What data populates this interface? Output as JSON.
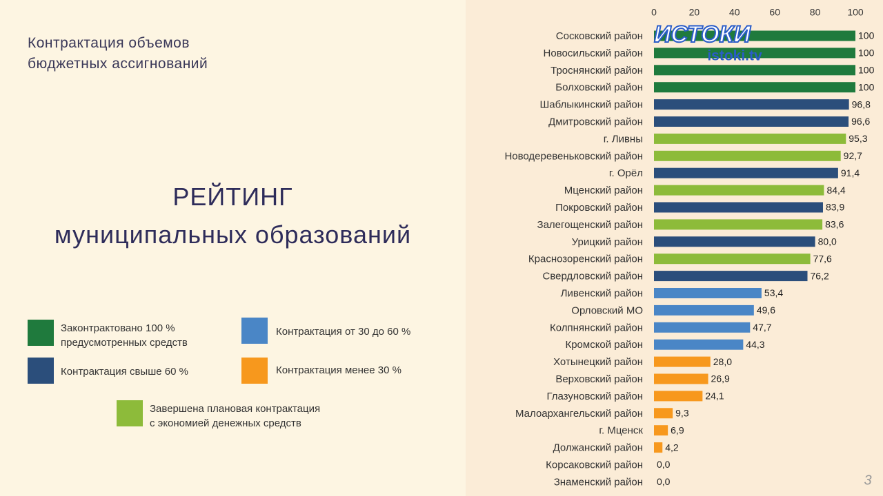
{
  "header": "Контрактация объемов\nбюджетных ассигнований",
  "title": "РЕЙТИНГ\nмуниципальных образований",
  "page_number": "3",
  "logo": "ИСТОКИ",
  "logo_url": "istoki.tv",
  "chart_data": {
    "type": "bar",
    "orientation": "horizontal",
    "categories": [
      "Сосковский район",
      "Новосильский район",
      "Троснянский район",
      "Болховский район",
      "Шаблыкинский район",
      "Дмитровский район",
      "г. Ливны",
      "Новодеревеньковский район",
      "г. Орёл",
      "Мценский район",
      "Покровский район",
      "Залегощенский район",
      "Урицкий район",
      "Краснозоренский район",
      "Свердловский район",
      "Ливенский район",
      "Орловский МО",
      "Колпнянский район",
      "Кромской район",
      "Хотынецкий район",
      "Верховский район",
      "Глазуновский район",
      "Малоархангельский район",
      "г. Мценск",
      "Должанский район",
      "Корсаковский район",
      "Знаменский район"
    ],
    "values": [
      100,
      100,
      100,
      100,
      96.8,
      96.6,
      95.3,
      92.7,
      91.4,
      84.4,
      83.9,
      83.6,
      80.0,
      77.6,
      76.2,
      53.4,
      49.6,
      47.7,
      44.3,
      28.0,
      26.9,
      24.1,
      9.3,
      6.9,
      4.2,
      0.0,
      0.0
    ],
    "value_labels": [
      "100",
      "100",
      "100",
      "100",
      "96,8",
      "96,6",
      "95,3",
      "92,7",
      "91,4",
      "84,4",
      "83,9",
      "83,6",
      "80,0",
      "77,6",
      "76,2",
      "53,4",
      "49,6",
      "47,7",
      "44,3",
      "28,0",
      "26,9",
      "24,1",
      "9,3",
      "6,9",
      "4,2",
      "0,0",
      "0,0"
    ],
    "colors": [
      "#1f7a3d",
      "#1f7a3d",
      "#1f7a3d",
      "#1f7a3d",
      "#2b4e7b",
      "#2b4e7b",
      "#8dbb3a",
      "#8dbb3a",
      "#2b4e7b",
      "#8dbb3a",
      "#2b4e7b",
      "#8dbb3a",
      "#2b4e7b",
      "#8dbb3a",
      "#2b4e7b",
      "#4a86c6",
      "#4a86c6",
      "#4a86c6",
      "#4a86c6",
      "#f7981d",
      "#f7981d",
      "#f7981d",
      "#f7981d",
      "#f7981d",
      "#f7981d",
      "#f7981d",
      "#f7981d"
    ],
    "xlim": [
      0,
      100
    ],
    "xticks": [
      0,
      20,
      40,
      60,
      80,
      100
    ],
    "grid": false,
    "legend": [
      {
        "name": "Законтрактовано 100 %\nпредусмотренных средств",
        "color": "#1f7a3d"
      },
      {
        "name": "Контрактация от 30 до 60 %",
        "color": "#4a86c6"
      },
      {
        "name": "Контрактация свыше 60 %",
        "color": "#2b4e7b"
      },
      {
        "name": "Контрактация менее 30 %",
        "color": "#f7981d"
      },
      {
        "name": "Завершена плановая контрактация\nс экономией денежных средств",
        "color": "#8dbb3a"
      }
    ]
  }
}
